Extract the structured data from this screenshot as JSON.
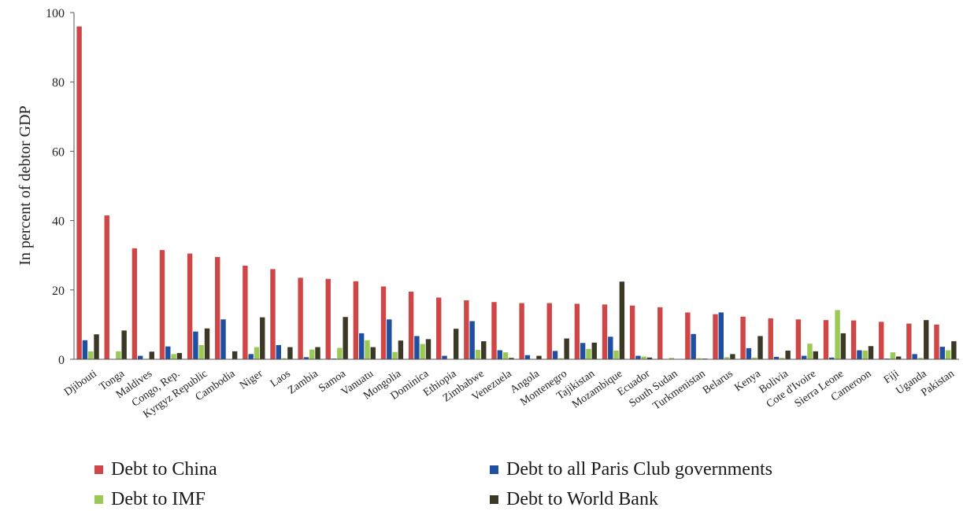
{
  "chart_data": {
    "type": "bar",
    "ylabel": "In percent of debtor GDP",
    "xlabel": "",
    "ylim": [
      0,
      100
    ],
    "yticks": [
      0,
      20,
      40,
      60,
      80,
      100
    ],
    "grid": false,
    "legend_position": "bottom",
    "categories": [
      "Djibouti",
      "Tonga",
      "Maldives",
      "Congo, Rep.",
      "Kyrgyz Republic",
      "Cambodia",
      "Niger",
      "Laos",
      "Zambia",
      "Samoa",
      "Vanuatu",
      "Mongolia",
      "Dominica",
      "Ethiopia",
      "Zimbabwe",
      "Venezuela",
      "Angola",
      "Montenegro",
      "Tajikistan",
      "Mozambique",
      "Ecuador",
      "South Sudan",
      "Turkmenistan",
      "Belarus",
      "Kenya",
      "Bolivia",
      "Cote d'Ivoire",
      "Sierra Leone",
      "Cameroon",
      "Fiji",
      "Uganda",
      "Pakistan"
    ],
    "series": [
      {
        "name": "Debt to China",
        "color": "#cf4647",
        "values": [
          96,
          41.5,
          32,
          31.5,
          30.5,
          29.5,
          27,
          26,
          23.5,
          23.2,
          22.5,
          21,
          19.5,
          17.8,
          17,
          16.5,
          16.2,
          16.2,
          16,
          15.8,
          15.5,
          15,
          13.5,
          13,
          12.3,
          11.8,
          11.5,
          11.3,
          11.2,
          10.8,
          10.3,
          10
        ]
      },
      {
        "name": "Debt to all Paris Club governments",
        "color": "#1f4fa0",
        "values": [
          5.5,
          0,
          1,
          3.7,
          8,
          11.5,
          1.5,
          4.1,
          0.6,
          0.2,
          7.5,
          11.5,
          6.7,
          1,
          11,
          2.6,
          1.2,
          2.4,
          4.7,
          6.5,
          1,
          0,
          7.3,
          13.5,
          3.2,
          0.7,
          1,
          0.5,
          2.6,
          0.2,
          1.5,
          3.6
        ]
      },
      {
        "name": "Debt to IMF",
        "color": "#9bc955",
        "values": [
          2.3,
          2.3,
          0,
          1.5,
          4.1,
          0,
          3.5,
          0.3,
          2.8,
          3.3,
          5.5,
          2.1,
          4.4,
          0,
          2.7,
          2,
          0,
          0.3,
          3,
          2.5,
          0.8,
          0.4,
          0.3,
          0.6,
          0.5,
          0.4,
          4.5,
          14.2,
          2.5,
          2,
          0.4,
          2.6
        ]
      },
      {
        "name": "Debt to World Bank",
        "color": "#3c3826",
        "values": [
          7.2,
          8.3,
          2.2,
          1.8,
          8.9,
          2.3,
          12.1,
          3.5,
          3.5,
          12.2,
          3.5,
          5.4,
          5.8,
          8.8,
          5.2,
          0.4,
          1,
          6,
          4.8,
          22.4,
          0.5,
          0.1,
          0.2,
          1.5,
          6.7,
          2.5,
          2.3,
          7.5,
          3.8,
          0.8,
          11.3,
          5.2
        ]
      }
    ]
  }
}
